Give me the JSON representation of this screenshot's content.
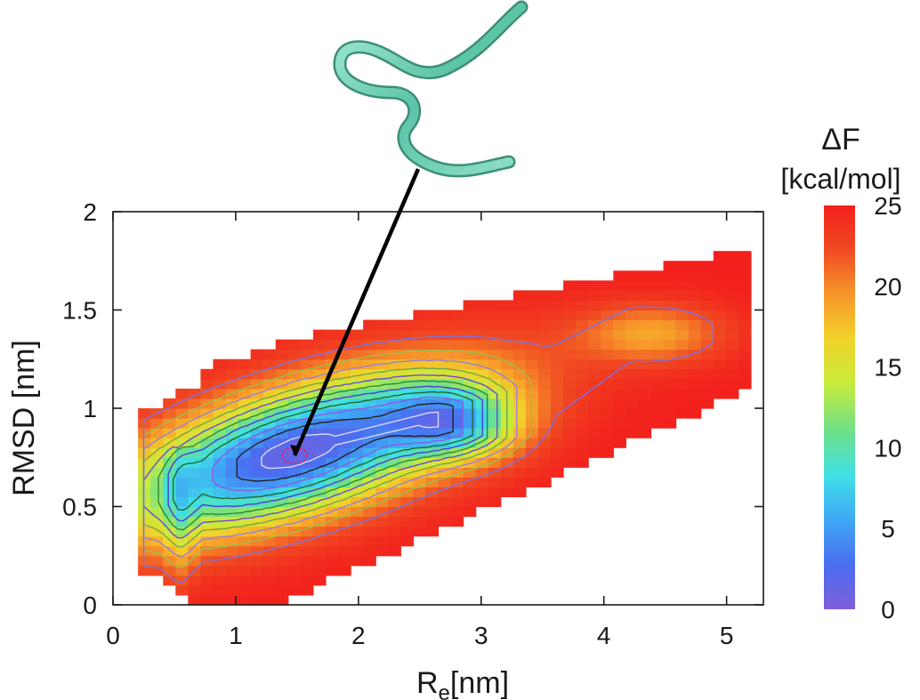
{
  "chart_data": {
    "type": "heatmap",
    "title": "",
    "xlabel": {
      "main": "R",
      "sub": "e",
      "unit": "[nm]"
    },
    "ylabel": "RMSD [nm]",
    "xlim": [
      0,
      5.3
    ],
    "ylim": [
      0,
      2
    ],
    "x_ticks": [
      0,
      1,
      2,
      3,
      4,
      5
    ],
    "y_ticks": [
      0,
      0.5,
      1,
      1.5,
      2
    ],
    "x_tick_labels": [
      "0",
      "1",
      "2",
      "3",
      "4",
      "5"
    ],
    "y_tick_labels": [
      "0",
      "0.5",
      "1",
      "1.5",
      "2"
    ],
    "colorbar": {
      "label_line1": "ΔF",
      "label_line2": "[kcal/mol]",
      "range": [
        0,
        25
      ],
      "ticks": [
        0,
        5,
        10,
        15,
        20,
        25
      ],
      "tick_labels": [
        "0",
        "5",
        "10",
        "15",
        "20",
        "25"
      ],
      "colors": [
        "#7f5fd8",
        "#4a6ef0",
        "#3fa7f5",
        "#3fe0e6",
        "#6ee08a",
        "#c8ec3c",
        "#f2d22a",
        "#f7962a",
        "#f04a22",
        "#f2201c"
      ]
    },
    "minimum": {
      "x": 1.48,
      "y": 0.76
    },
    "inset": {
      "description_icon": "protein-ribbon-structure",
      "ribbon_color": "#6fd2b6"
    },
    "contour_levels": [
      2,
      4,
      6,
      8,
      10,
      12,
      14,
      16,
      18,
      20,
      22
    ],
    "grid": false,
    "legend": "none"
  }
}
